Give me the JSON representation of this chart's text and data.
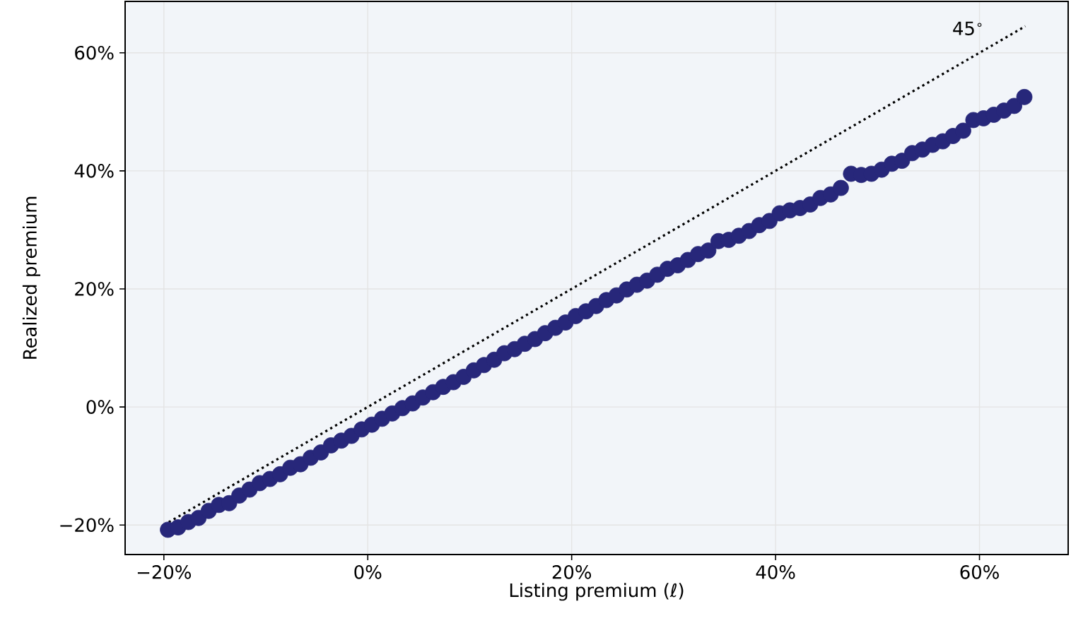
{
  "chart_data": {
    "type": "scatter",
    "xlabel": "Listing premium (ℓ)",
    "ylabel": "Realized premium",
    "xlim": [
      -23.8,
      68.7
    ],
    "ylim": [
      -25.0,
      68.7
    ],
    "xticks": [
      {
        "value": -20,
        "label": "−20%"
      },
      {
        "value": 0,
        "label": "0%"
      },
      {
        "value": 20,
        "label": "20%"
      },
      {
        "value": 40,
        "label": "40%"
      },
      {
        "value": 60,
        "label": "60%"
      }
    ],
    "yticks": [
      {
        "value": -20,
        "label": "−20%"
      },
      {
        "value": 0,
        "label": "0%"
      },
      {
        "value": 20,
        "label": "20%"
      },
      {
        "value": 40,
        "label": "40%"
      },
      {
        "value": 60,
        "label": "60%"
      }
    ],
    "grid": true,
    "annotations": [
      "45$^{∘}$"
    ],
    "series": [
      {
        "type": "line",
        "color": "#000000",
        "line_style": "dotted",
        "x": [
          -20,
          64.5
        ],
        "values": [
          -20,
          64.5
        ]
      },
      {
        "color": "#27277a",
        "x": [
          -19.6,
          -18.6,
          -17.6,
          -16.6,
          -15.6,
          -14.6,
          -13.6,
          -12.6,
          -11.6,
          -10.6,
          -9.6,
          -8.6,
          -7.6,
          -6.6,
          -5.6,
          -4.6,
          -3.6,
          -2.6,
          -1.6,
          -0.6,
          0.4,
          1.4,
          2.4,
          3.4,
          4.4,
          5.4,
          6.4,
          7.4,
          8.4,
          9.4,
          10.4,
          11.4,
          12.4,
          13.4,
          14.4,
          15.4,
          16.4,
          17.4,
          18.4,
          19.4,
          20.4,
          21.4,
          22.4,
          23.4,
          24.4,
          25.4,
          26.4,
          27.4,
          28.4,
          29.4,
          30.4,
          31.4,
          32.4,
          33.4,
          34.4,
          35.4,
          36.4,
          37.4,
          38.4,
          39.4,
          40.4,
          41.4,
          42.4,
          43.4,
          44.4,
          45.4,
          46.4,
          47.4,
          48.4,
          49.4,
          50.4,
          51.4,
          52.4,
          53.4,
          54.4,
          55.4,
          56.4,
          57.4,
          58.4,
          59.4,
          60.4,
          61.4,
          62.4,
          63.4,
          64.4
        ],
        "values": [
          -20.8,
          -20.4,
          -19.5,
          -18.8,
          -17.6,
          -16.6,
          -16.3,
          -15.0,
          -14.0,
          -12.9,
          -12.2,
          -11.4,
          -10.3,
          -9.7,
          -8.6,
          -7.7,
          -6.5,
          -5.7,
          -4.9,
          -3.8,
          -3.0,
          -2.0,
          -1.1,
          -0.2,
          0.6,
          1.6,
          2.5,
          3.4,
          4.2,
          5.1,
          6.2,
          7.1,
          8.0,
          9.1,
          9.8,
          10.7,
          11.5,
          12.5,
          13.4,
          14.3,
          15.4,
          16.2,
          17.1,
          18.1,
          18.9,
          19.9,
          20.7,
          21.4,
          22.4,
          23.4,
          24.0,
          24.9,
          25.9,
          26.5,
          28.1,
          28.3,
          29.0,
          29.8,
          30.8,
          31.5,
          32.8,
          33.3,
          33.7,
          34.3,
          35.4,
          36.0,
          37.1,
          39.5,
          39.3,
          39.5,
          40.2,
          41.2,
          41.7,
          43.0,
          43.6,
          44.4,
          45.0,
          45.9,
          46.8,
          48.6,
          48.9,
          49.5,
          50.2,
          51.0,
          52.5
        ]
      }
    ]
  }
}
